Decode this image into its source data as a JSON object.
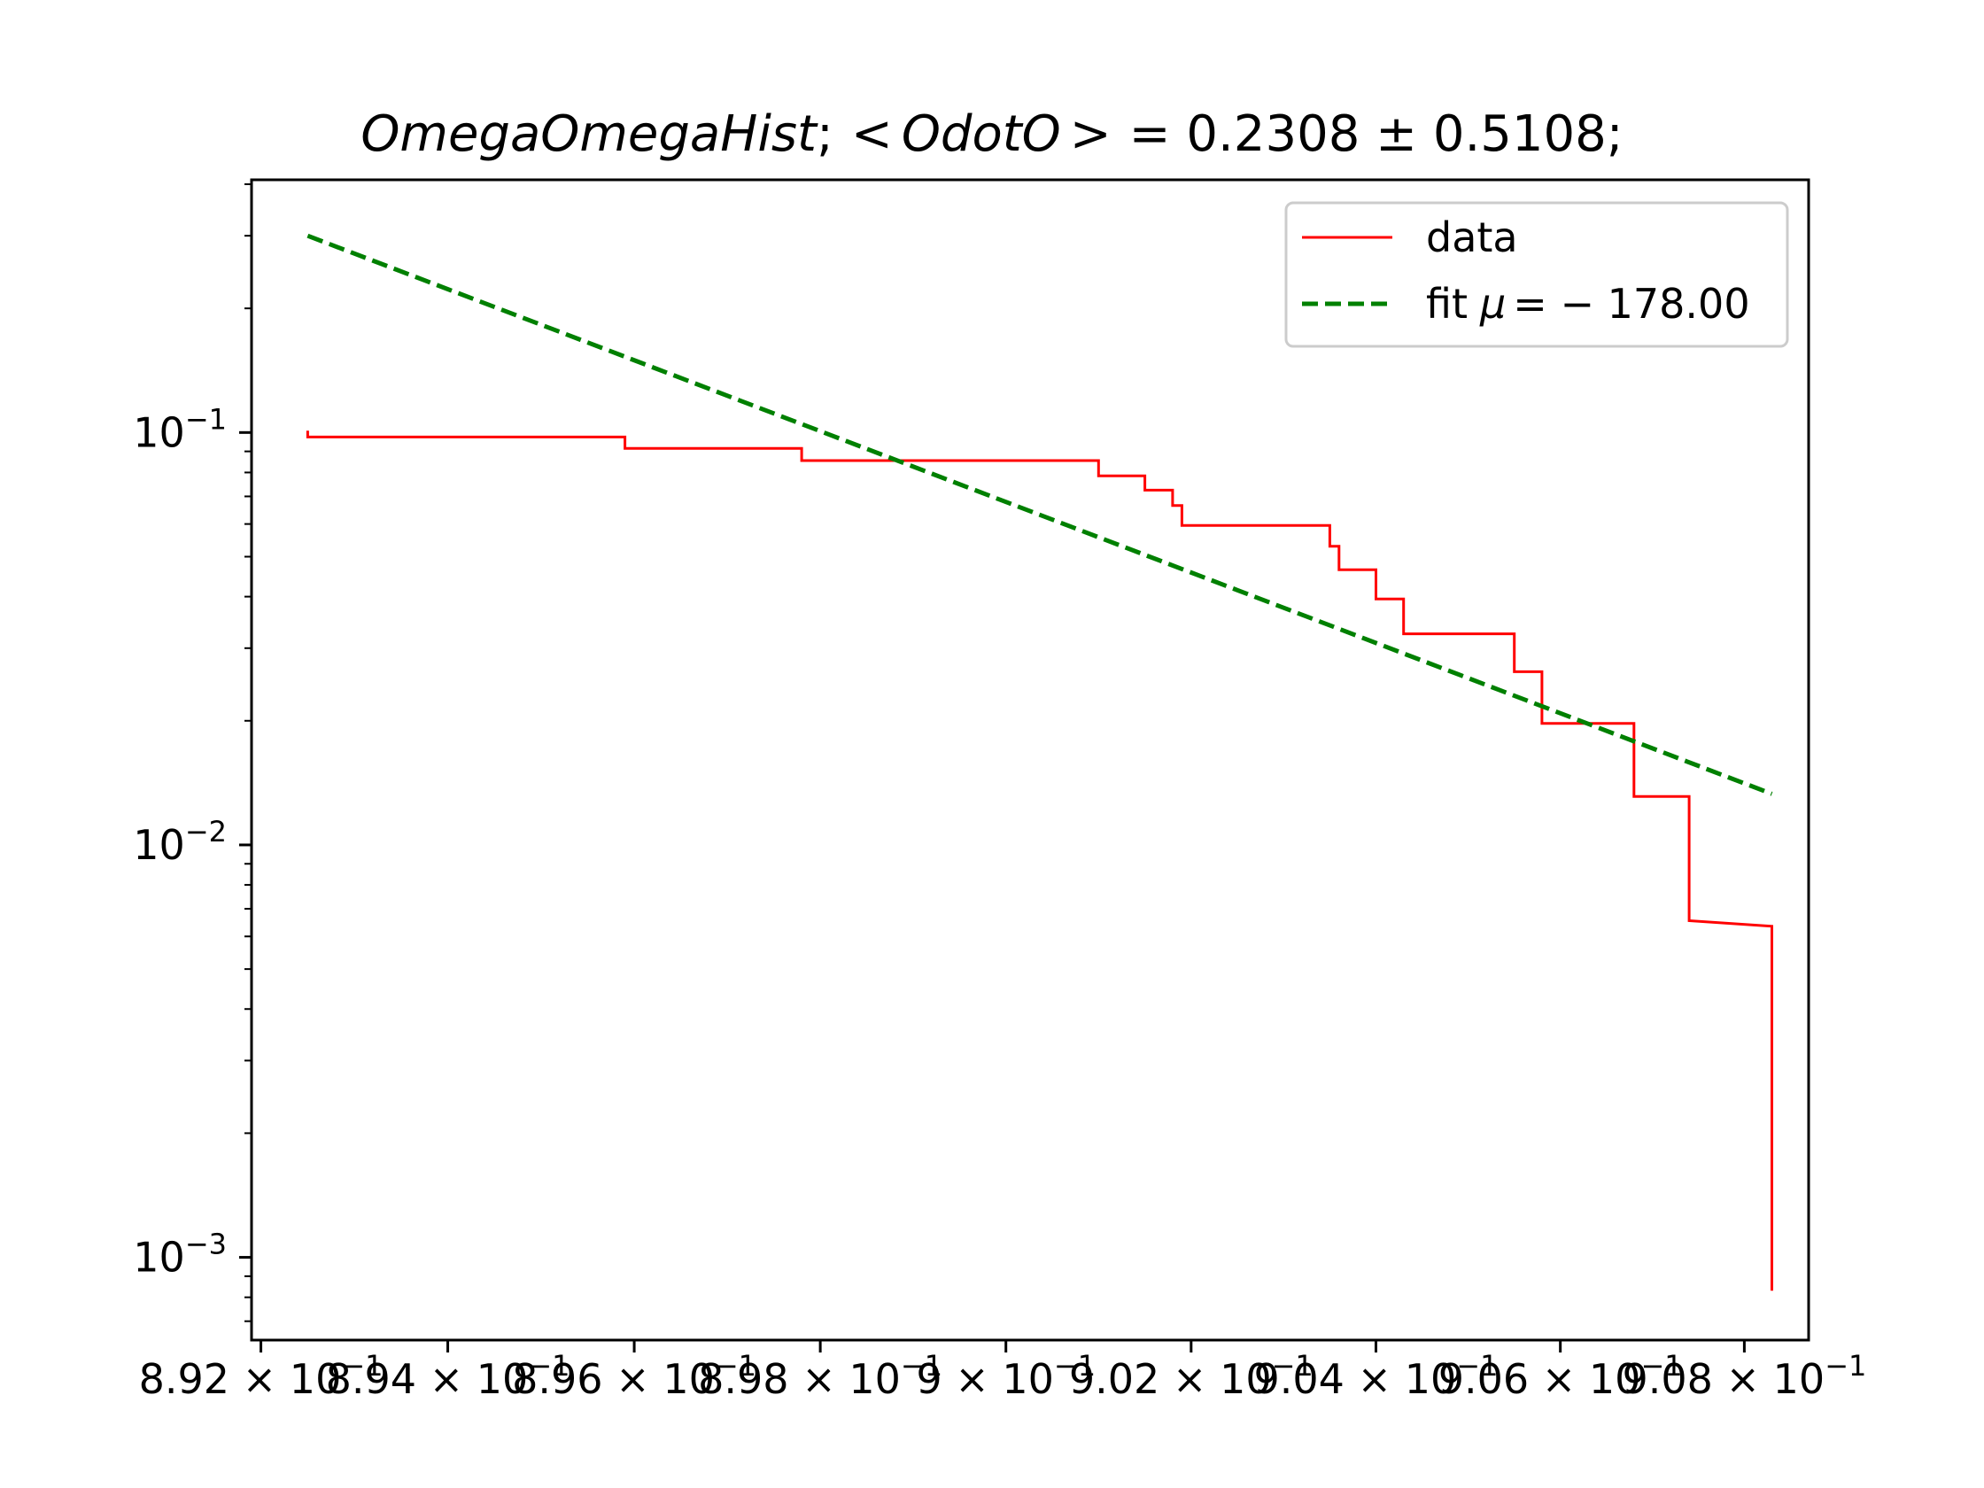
{
  "chart_data": {
    "type": "line",
    "title": {
      "name": "OmegaOmegaHist",
      "sep": ";",
      "lt": "<",
      "symbol": "OdotO",
      "gt": ">",
      "rest": "= 0.2308 ± 0.5108;"
    },
    "xlabel": "",
    "ylabel": "",
    "xscale": "log",
    "yscale": "log",
    "xlim": [
      0.8919,
      0.9087
    ],
    "ylim": [
      0.00063,
      0.41
    ],
    "grid": false,
    "legend_placement": "upper right",
    "x_tick_labels": [
      {
        "value": 0.892,
        "mantissa": "8.92",
        "exp": "−1"
      },
      {
        "value": 0.894,
        "mantissa": "8.94",
        "exp": "−1"
      },
      {
        "value": 0.896,
        "mantissa": "8.96",
        "exp": "−1"
      },
      {
        "value": 0.898,
        "mantissa": "8.98",
        "exp": "−1"
      },
      {
        "value": 0.9,
        "mantissa": "9",
        "exp": "−1"
      },
      {
        "value": 0.902,
        "mantissa": "9.02",
        "exp": "−1"
      },
      {
        "value": 0.904,
        "mantissa": "9.04",
        "exp": "−1"
      },
      {
        "value": 0.906,
        "mantissa": "9.06",
        "exp": "−1"
      },
      {
        "value": 0.908,
        "mantissa": "9.08",
        "exp": "−1"
      }
    ],
    "y_tick_labels": [
      {
        "value": 0.1,
        "base": "10",
        "exp": "−1"
      },
      {
        "value": 0.01,
        "base": "10",
        "exp": "−2"
      },
      {
        "value": 0.001,
        "base": "10",
        "exp": "−3"
      }
    ],
    "series": [
      {
        "name": "data",
        "color": "#ff0000",
        "style": "solid-step",
        "points": [
          [
            0.8925,
            0.101
          ],
          [
            0.8925,
            0.0975
          ],
          [
            0.8959,
            0.0975
          ],
          [
            0.8959,
            0.0915
          ],
          [
            0.8978,
            0.0915
          ],
          [
            0.8978,
            0.0855
          ],
          [
            0.901,
            0.0855
          ],
          [
            0.901,
            0.0785
          ],
          [
            0.9015,
            0.0785
          ],
          [
            0.9015,
            0.0725
          ],
          [
            0.9018,
            0.0725
          ],
          [
            0.9018,
            0.0665
          ],
          [
            0.9019,
            0.0665
          ],
          [
            0.9019,
            0.0595
          ],
          [
            0.9035,
            0.0595
          ],
          [
            0.9035,
            0.053
          ],
          [
            0.9036,
            0.053
          ],
          [
            0.9036,
            0.0465
          ],
          [
            0.904,
            0.0465
          ],
          [
            0.904,
            0.0395
          ],
          [
            0.9043,
            0.0395
          ],
          [
            0.9043,
            0.0325
          ],
          [
            0.9055,
            0.0325
          ],
          [
            0.9055,
            0.0263
          ],
          [
            0.9058,
            0.0263
          ],
          [
            0.9058,
            0.0197
          ],
          [
            0.9068,
            0.0197
          ],
          [
            0.9068,
            0.0131
          ],
          [
            0.9074,
            0.0131
          ],
          [
            0.9074,
            0.00655
          ],
          [
            0.9083,
            0.00635
          ],
          [
            0.9083,
            0.00083
          ]
        ]
      },
      {
        "name": "fit μ = − 178.00",
        "color": "#008000",
        "style": "dashed",
        "points": [
          [
            0.8925,
            0.3
          ],
          [
            0.9083,
            0.0133
          ]
        ]
      }
    ],
    "legend": [
      {
        "label_text": "data",
        "series": 0
      },
      {
        "label_prefix": "fit",
        "label_mu": "μ",
        "label_rest": "= − 178.00",
        "series": 1
      }
    ]
  }
}
